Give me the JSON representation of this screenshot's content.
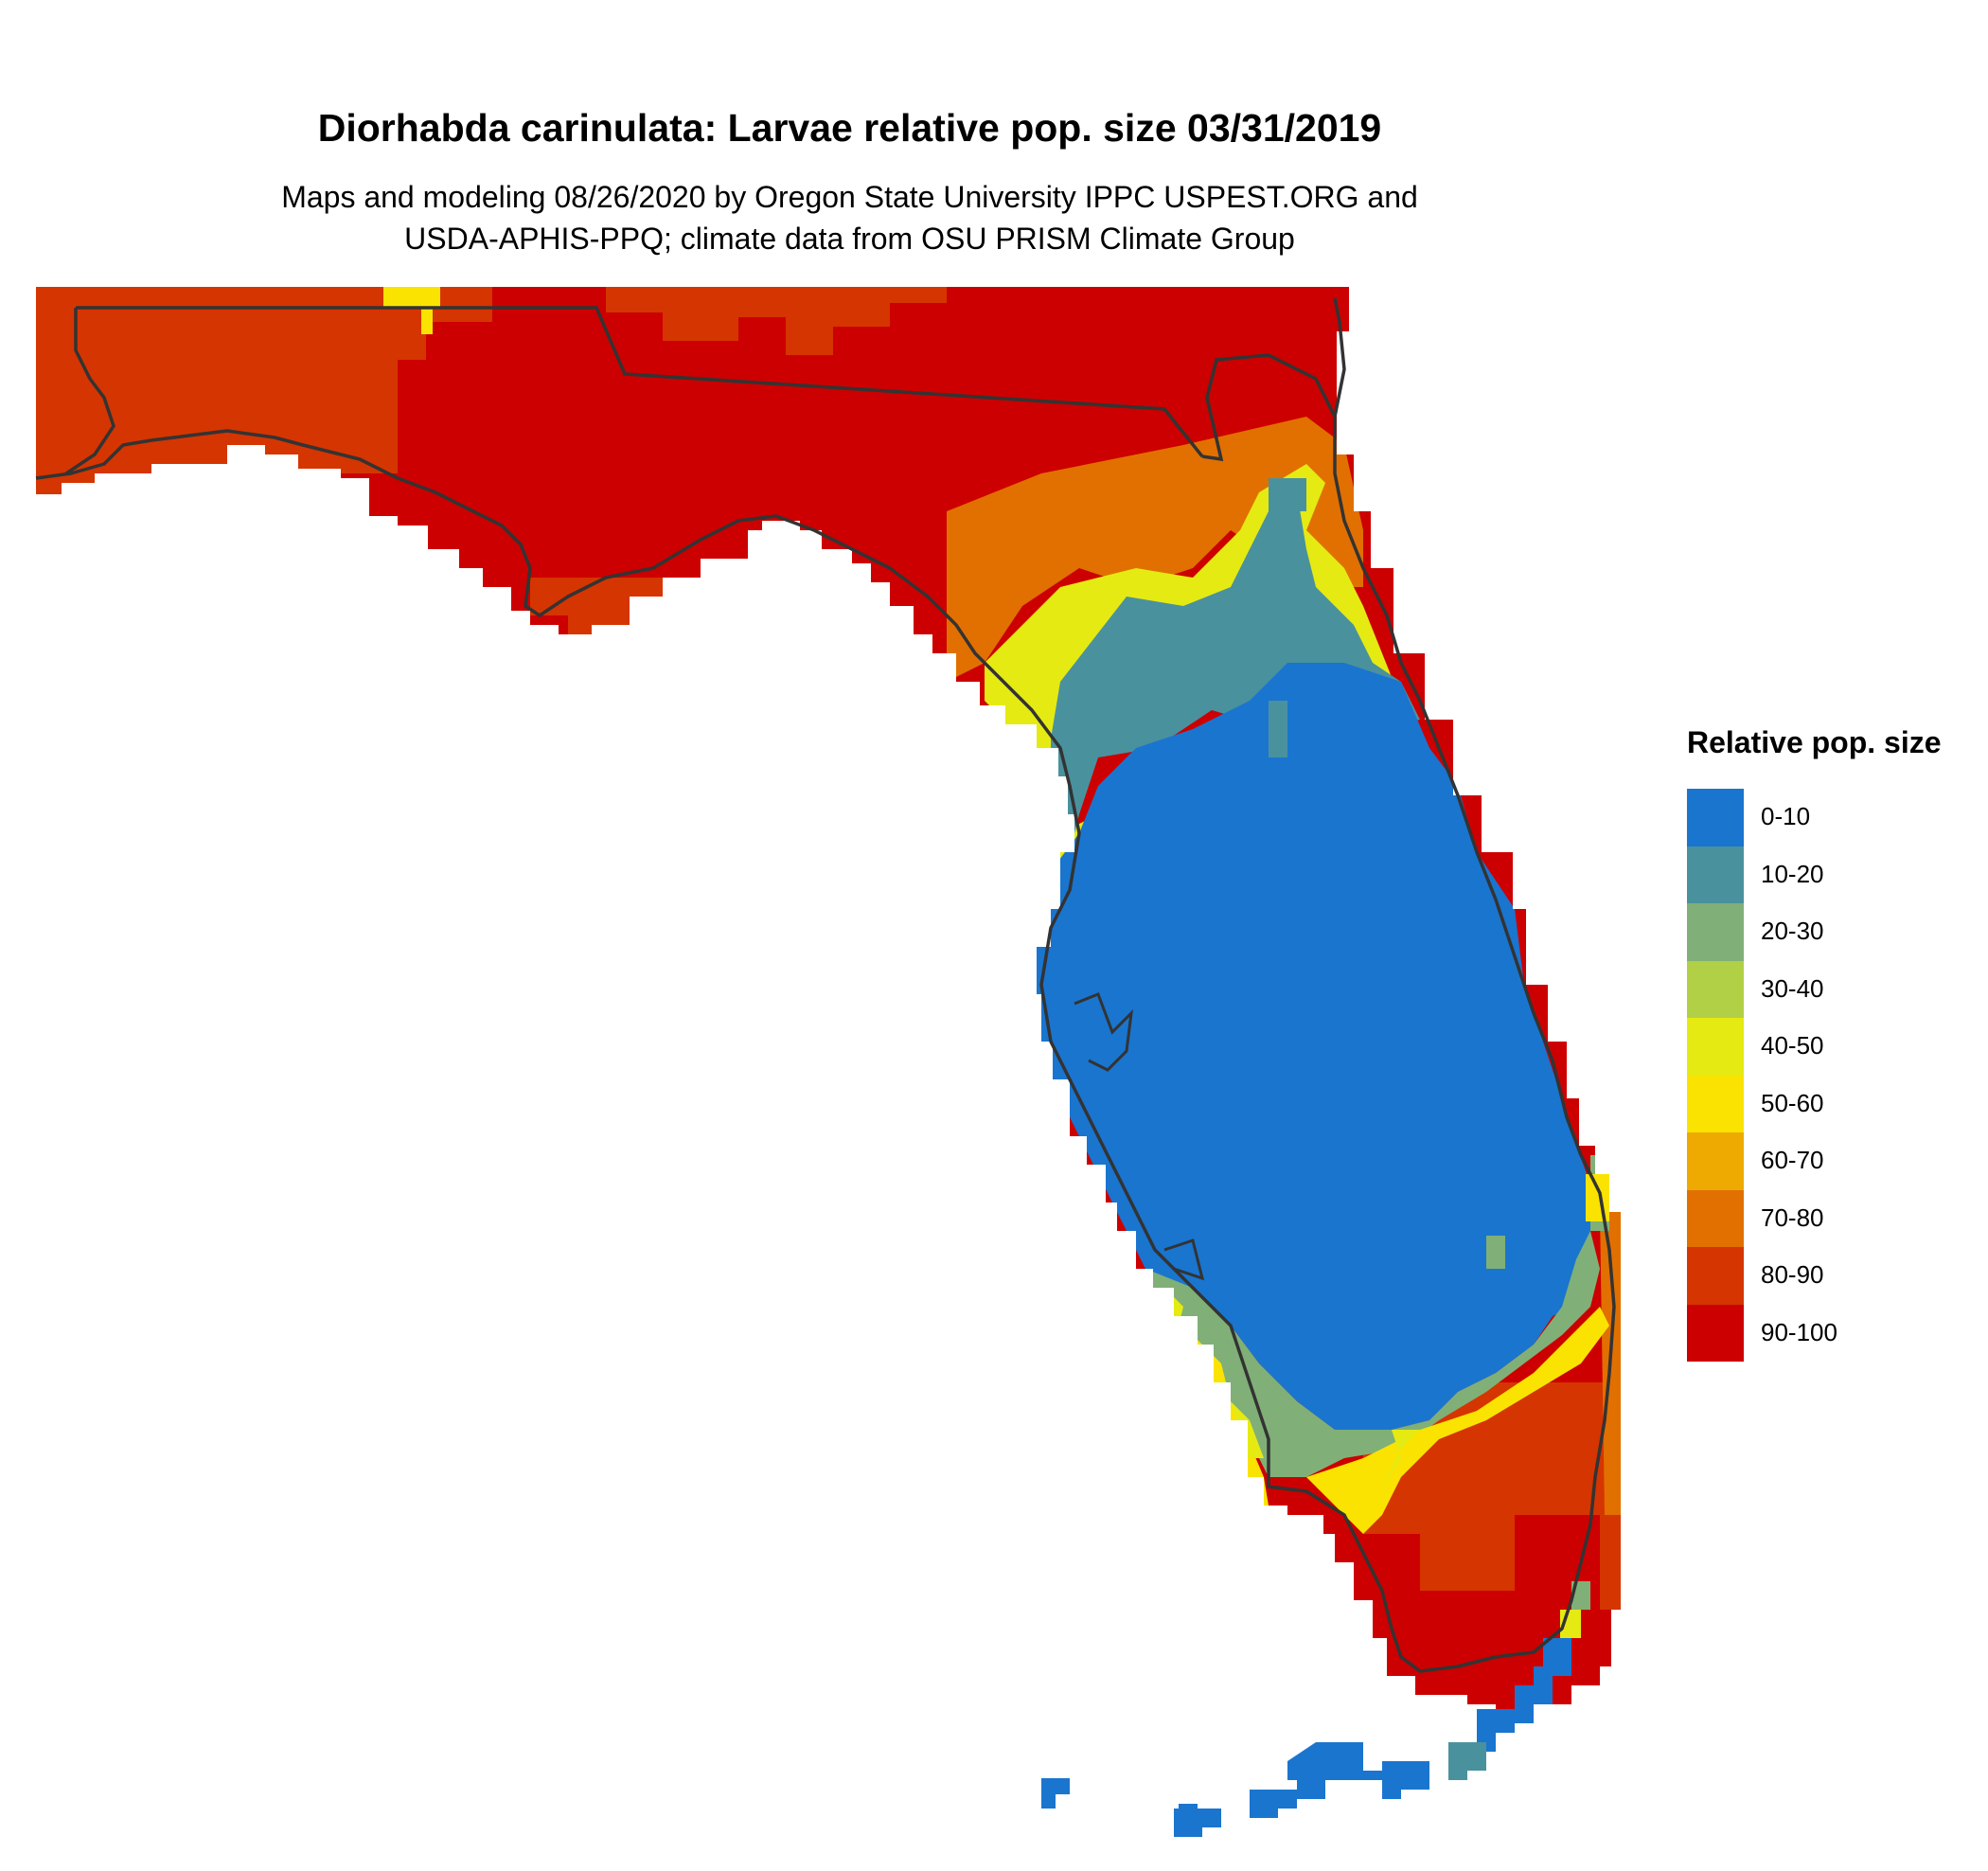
{
  "title": "Diorhabda carinulata: Larvae relative pop. size 03/31/2019",
  "subtitle": [
    "Maps and modeling 08/26/2020 by Oregon State University IPPC USPEST.ORG and",
    "USDA-APHIS-PPQ; climate data from OSU PRISM Climate Group"
  ],
  "map": {
    "region": "Florida",
    "variable": "Larvae relative pop. size"
  },
  "legend": {
    "title": "Relative pop. size",
    "items": [
      {
        "label": "0-10",
        "color": "#1a75cf"
      },
      {
        "label": "10-20",
        "color": "#4a919e"
      },
      {
        "label": "20-30",
        "color": "#80b077"
      },
      {
        "label": "30-40",
        "color": "#b1d045"
      },
      {
        "label": "40-50",
        "color": "#e5ea12"
      },
      {
        "label": "50-60",
        "color": "#fae300"
      },
      {
        "label": "60-70",
        "color": "#eeaa00"
      },
      {
        "label": "70-80",
        "color": "#e17000"
      },
      {
        "label": "80-90",
        "color": "#d53500"
      },
      {
        "label": "90-100",
        "color": "#cc0000"
      }
    ]
  }
}
